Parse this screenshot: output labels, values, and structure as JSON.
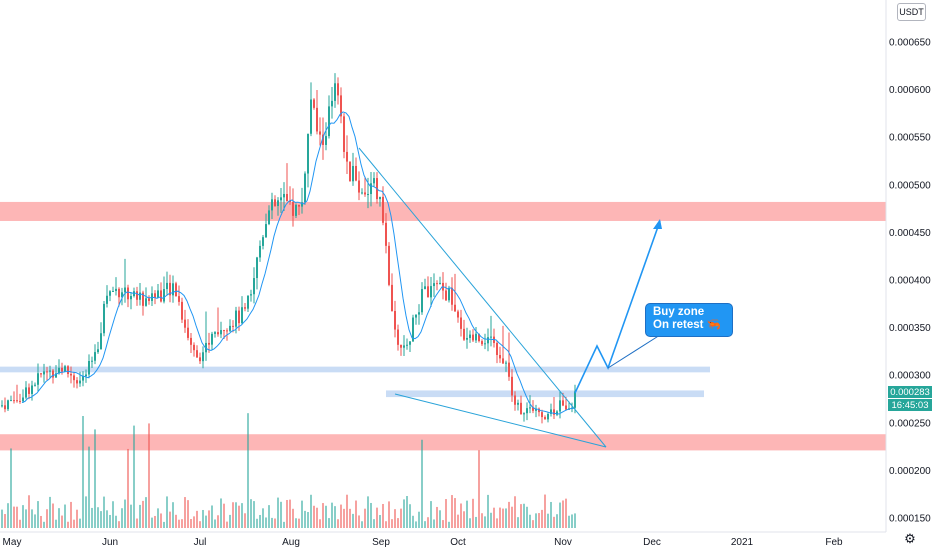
{
  "symbol_currency": "USDT",
  "chart_data": {
    "type": "candlestick",
    "y_axis_position": "right",
    "ylim": [
      0.000135,
      0.000662
    ],
    "y_ticks": [
      "0.000650",
      "0.000600",
      "0.000550",
      "0.000500",
      "0.000450",
      "0.000400",
      "0.000350",
      "0.000300",
      "0.000250",
      "0.000200",
      "0.000150"
    ],
    "x_ticks": [
      "May",
      "Jun",
      "Jul",
      "Aug",
      "Sep",
      "Oct",
      "Nov",
      "Dec",
      "2021",
      "Feb"
    ],
    "last_price": "0.000283",
    "countdown": "16:45:03",
    "annotation": {
      "line1": "Buy zone",
      "line2": "On retest 🦐"
    },
    "zones": {
      "resistance_red": [
        0.000462,
        0.000482
      ],
      "support_red": [
        0.000221,
        0.000238
      ],
      "blue_upper": [
        0.000303,
        0.000309
      ],
      "blue_lower": [
        0.000277,
        0.000284
      ]
    },
    "colors": {
      "up": "#26a69a",
      "down": "#ef5350",
      "ma": "#2196f3",
      "red_zone": "#fdb6b6",
      "blue_zone": "#c9dcf5"
    },
    "anchors": [
      [
        0,
        0.000268
      ],
      [
        20,
        0.000278
      ],
      [
        40,
        0.0003
      ],
      [
        60,
        0.000308
      ],
      [
        80,
        0.000293
      ],
      [
        95,
        0.00032
      ],
      [
        105,
        0.000385
      ],
      [
        120,
        0.000392
      ],
      [
        140,
        0.00038
      ],
      [
        160,
        0.000387
      ],
      [
        175,
        0.000388
      ],
      [
        190,
        0.00033
      ],
      [
        200,
        0.000322
      ],
      [
        220,
        0.000352
      ],
      [
        245,
        0.000365
      ],
      [
        265,
        0.000468
      ],
      [
        280,
        0.000483
      ],
      [
        300,
        0.000472
      ],
      [
        310,
        0.000585
      ],
      [
        320,
        0.00054
      ],
      [
        335,
        0.0006
      ],
      [
        345,
        0.00052
      ],
      [
        360,
        0.000495
      ],
      [
        375,
        0.000497
      ],
      [
        385,
        0.000445
      ],
      [
        392,
        0.000345
      ],
      [
        402,
        0.000328
      ],
      [
        410,
        0.000345
      ],
      [
        420,
        0.000382
      ],
      [
        435,
        0.000392
      ],
      [
        450,
        0.000382
      ],
      [
        460,
        0.000345
      ],
      [
        475,
        0.00034
      ],
      [
        490,
        0.000338
      ],
      [
        505,
        0.000312
      ],
      [
        515,
        0.000268
      ],
      [
        530,
        0.00026
      ],
      [
        545,
        0.00026
      ],
      [
        560,
        0.000268
      ],
      [
        570,
        0.00027
      ],
      [
        575,
        0.000283
      ]
    ]
  }
}
